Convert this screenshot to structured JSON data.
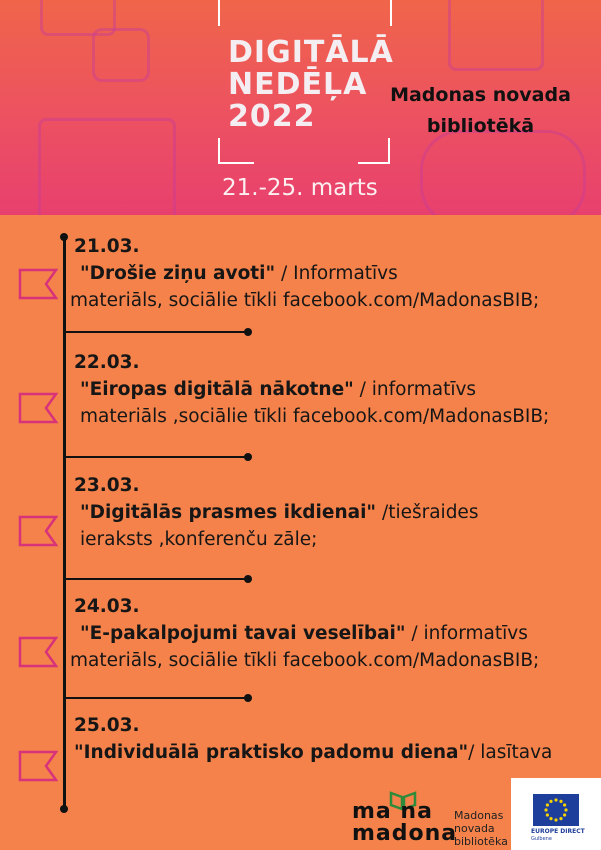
{
  "banner": {
    "title_lines": [
      "DIGITĀLĀ",
      "NEDĒĻA",
      "2022"
    ],
    "dates": "21.-25. marts",
    "library_lines": [
      "Madonas novada",
      "bibliotēkā"
    ]
  },
  "events": [
    {
      "date": "21.03.",
      "title": "\"Drošie ziņu avoti\"",
      "desc_first": " / Informatīvs",
      "desc_rest": "materiāls, sociālie tīkli facebook.com/MadonasBIB;"
    },
    {
      "date": "22.03.",
      "title": "\"Eiropas digitālā nākotne\"",
      "desc_first": " / informatīvs",
      "desc_rest": "materiāls ,sociālie tīkli facebook.com/MadonasBIB;"
    },
    {
      "date": "23.03.",
      "title": "\"Digitālās prasmes ikdienai\"",
      "desc_first": " /tiešraides",
      "desc_rest": "ieraksts ,konferenču zāle;"
    },
    {
      "date": "24.03.",
      "title": "\"E-pakalpojumi tavai veselībai\"",
      "desc_first": " / informatīvs",
      "desc_rest": "materiāls, sociālie tīkli facebook.com/MadonasBIB;"
    },
    {
      "date": "25.03.",
      "title": "\"Individuālā praktisko padomu diena\"",
      "desc_first": "/ lasītava",
      "desc_rest": ""
    }
  ],
  "footer": {
    "logo_word_top": "ma na",
    "logo_word_bottom": "madona",
    "logo_caption_lines": [
      "Madonas",
      "novada",
      "bibliotēka"
    ],
    "europe_direct": "EUROPE DIRECT",
    "europe_direct_city": "Gulbene"
  },
  "colors": {
    "background": "#F4824A",
    "banner_top": "#F0654A",
    "banner_bottom": "#E8406E",
    "flag_outline": "#D8327A",
    "logo_green": "#2E8B3A",
    "eu_blue": "#1E3E9B"
  }
}
